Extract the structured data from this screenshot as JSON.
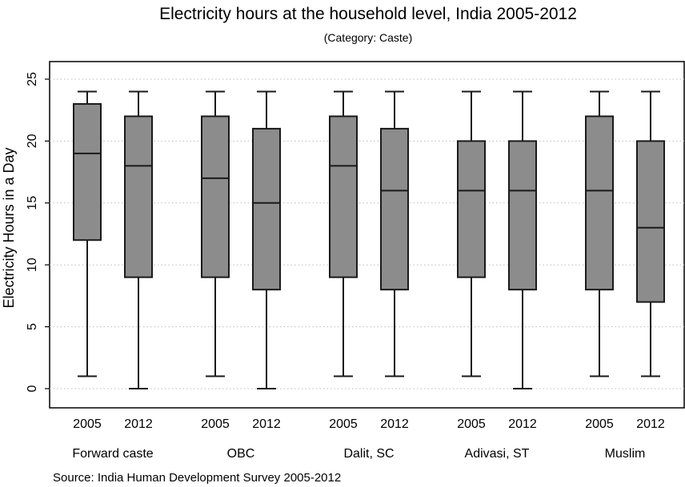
{
  "chart_data": {
    "type": "box",
    "title": "Electricity hours at the household level, India 2005-2012",
    "subtitle": "(Category: Caste)",
    "ylabel": "Electricity Hours in a Day",
    "xlabel": "",
    "ylim": [
      0,
      25
    ],
    "yticks": [
      "0",
      "5",
      "10",
      "15",
      "20",
      "25"
    ],
    "grid": true,
    "box_color": "#8c8c8c",
    "line_color": "#1a1a1a",
    "source": "Source: India Human Development Survey 2005-2012",
    "groups": [
      {
        "name": "Forward caste",
        "boxes": [
          {
            "label": "2005",
            "min": 1,
            "q1": 12,
            "median": 19,
            "q3": 23,
            "max": 24
          },
          {
            "label": "2012",
            "min": 0,
            "q1": 9,
            "median": 18,
            "q3": 22,
            "max": 24
          }
        ]
      },
      {
        "name": "OBC",
        "boxes": [
          {
            "label": "2005",
            "min": 1,
            "q1": 9,
            "median": 17,
            "q3": 22,
            "max": 24
          },
          {
            "label": "2012",
            "min": 0,
            "q1": 8,
            "median": 15,
            "q3": 21,
            "max": 24
          }
        ]
      },
      {
        "name": "Dalit, SC",
        "boxes": [
          {
            "label": "2005",
            "min": 1,
            "q1": 9,
            "median": 18,
            "q3": 22,
            "max": 24
          },
          {
            "label": "2012",
            "min": 1,
            "q1": 8,
            "median": 16,
            "q3": 21,
            "max": 24
          }
        ]
      },
      {
        "name": "Adivasi, ST",
        "boxes": [
          {
            "label": "2005",
            "min": 1,
            "q1": 9,
            "median": 16,
            "q3": 20,
            "max": 24
          },
          {
            "label": "2012",
            "min": 0,
            "q1": 8,
            "median": 16,
            "q3": 20,
            "max": 24
          }
        ]
      },
      {
        "name": "Muslim",
        "boxes": [
          {
            "label": "2005",
            "min": 1,
            "q1": 8,
            "median": 16,
            "q3": 22,
            "max": 24
          },
          {
            "label": "2012",
            "min": 1,
            "q1": 7,
            "median": 13,
            "q3": 20,
            "max": 24
          }
        ]
      }
    ]
  }
}
